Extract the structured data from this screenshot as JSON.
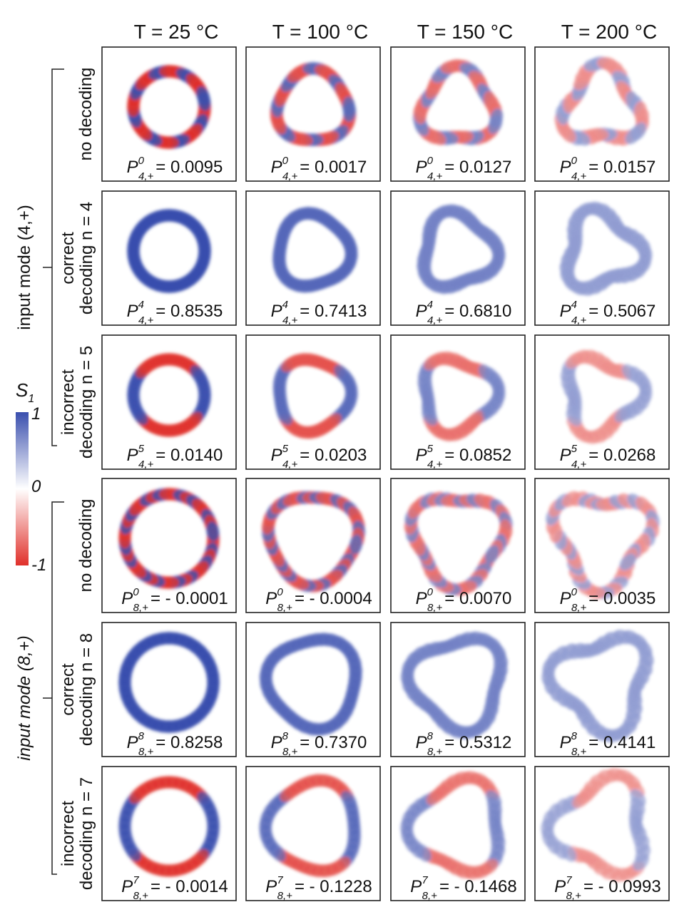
{
  "column_headers": [
    "T = 25 °C",
    "T = 100 °C",
    "T = 150 °C",
    "T = 200 °C"
  ],
  "groups": [
    {
      "label": "input mode (4,+)",
      "rows": [
        {
          "label_lines": [
            "no decoding"
          ]
        },
        {
          "label_lines": [
            "correct",
            "decoding n = 4"
          ]
        },
        {
          "label_lines": [
            "incorrect",
            "decoding n = 5"
          ]
        }
      ]
    },
    {
      "label": "input mode (8,+)",
      "rows": [
        {
          "label_lines": [
            "no decoding"
          ]
        },
        {
          "label_lines": [
            "correct",
            "decoding n = 8"
          ]
        },
        {
          "label_lines": [
            "incorrect",
            "decoding n = 7"
          ]
        }
      ]
    }
  ],
  "colorbar": {
    "symbol": "S",
    "subscript": "1",
    "ticks": [
      "1",
      "0",
      "-1"
    ]
  },
  "panels": [
    [
      {
        "symbol": "P",
        "sup": "0",
        "sub": "4,+",
        "value": "= 0.0095"
      },
      {
        "symbol": "P",
        "sup": "0",
        "sub": "4,+",
        "value": "= 0.0017"
      },
      {
        "symbol": "P",
        "sup": "0",
        "sub": "4,+",
        "value": "= 0.0127"
      },
      {
        "symbol": "P",
        "sup": "0",
        "sub": "4,+",
        "value": "= 0.0157"
      }
    ],
    [
      {
        "symbol": "P",
        "sup": "4",
        "sub": "4,+",
        "value": "= 0.8535"
      },
      {
        "symbol": "P",
        "sup": "4",
        "sub": "4,+",
        "value": "= 0.7413"
      },
      {
        "symbol": "P",
        "sup": "4",
        "sub": "4,+",
        "value": "= 0.6810"
      },
      {
        "symbol": "P",
        "sup": "4",
        "sub": "4,+",
        "value": "= 0.5067"
      }
    ],
    [
      {
        "symbol": "P",
        "sup": "5",
        "sub": "4,+",
        "value": "= 0.0140"
      },
      {
        "symbol": "P",
        "sup": "5",
        "sub": "4,+",
        "value": "= 0.0203"
      },
      {
        "symbol": "P",
        "sup": "5",
        "sub": "4,+",
        "value": "= 0.0852"
      },
      {
        "symbol": "P",
        "sup": "5",
        "sub": "4,+",
        "value": "= 0.0268"
      }
    ],
    [
      {
        "symbol": "P",
        "sup": "0",
        "sub": "8,+",
        "value": "= - 0.0001"
      },
      {
        "symbol": "P",
        "sup": "0",
        "sub": "8,+",
        "value": "= - 0.0004"
      },
      {
        "symbol": "P",
        "sup": "0",
        "sub": "8,+",
        "value": "= 0.0070"
      },
      {
        "symbol": "P",
        "sup": "0",
        "sub": "8,+",
        "value": "= 0.0035"
      }
    ],
    [
      {
        "symbol": "P",
        "sup": "8",
        "sub": "8,+",
        "value": "= 0.8258"
      },
      {
        "symbol": "P",
        "sup": "8",
        "sub": "8,+",
        "value": "= 0.7370"
      },
      {
        "symbol": "P",
        "sup": "8",
        "sub": "8,+",
        "value": "= 0.5312"
      },
      {
        "symbol": "P",
        "sup": "8",
        "sub": "8,+",
        "value": "= 0.4141"
      }
    ],
    [
      {
        "symbol": "P",
        "sup": "7",
        "sub": "8,+",
        "value": "= - 0.0014"
      },
      {
        "symbol": "P",
        "sup": "7",
        "sub": "8,+",
        "value": "= - 0.1228"
      },
      {
        "symbol": "P",
        "sup": "7",
        "sub": "8,+",
        "value": "= - 0.1468"
      },
      {
        "symbol": "P",
        "sup": "7",
        "sub": "8,+",
        "value": "= - 0.0993"
      }
    ]
  ]
}
